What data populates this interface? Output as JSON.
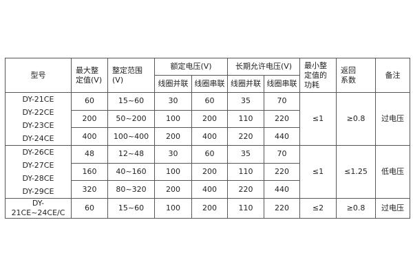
{
  "headers": {
    "model": "型号",
    "max_setting": "最大整定值(V)",
    "max_setting_l1": "最大整",
    "max_setting_l2": "定值(V)",
    "range_l1": "整定范围",
    "range_l2": "(V)",
    "rated": "额定电压(V)",
    "long_term": "长期允许电压(V)",
    "parallel": "线圈并联",
    "series": "线圈串联",
    "power_l1": "最小整",
    "power_l2": "定值的",
    "power_l3": "功耗",
    "return_l1": "返回",
    "return_l2": "系数",
    "remark": "备注"
  },
  "groups": [
    {
      "models": [
        "DY-21CE",
        "DY-22CE",
        "DY-23CE",
        "DY-24CE"
      ],
      "power": "≤1",
      "return": "≥0.8",
      "remark": "过电压",
      "rows": [
        [
          "60",
          "15~60",
          "30",
          "60",
          "35",
          "70"
        ],
        [
          "200",
          "50~200",
          "100",
          "200",
          "110",
          "220"
        ],
        [
          "400",
          "100~400",
          "200",
          "400",
          "220",
          "440"
        ]
      ]
    },
    {
      "models": [
        "DY-26CE",
        "DY-27CE",
        "DY-28CE",
        "DY-29CE"
      ],
      "power": "≤1",
      "return": "≤1.25",
      "remark": "低电压",
      "rows": [
        [
          "48",
          "12~48",
          "30",
          "60",
          "35",
          "70"
        ],
        [
          "160",
          "40~160",
          "100",
          "200",
          "110",
          "220"
        ],
        [
          "320",
          "80~320",
          "200",
          "400",
          "220",
          "440"
        ]
      ]
    },
    {
      "models": [
        "DY-21CE~24CE/C"
      ],
      "power": "≤2",
      "return": "≥0.8",
      "remark": "过电压",
      "rows": [
        [
          "60",
          "15~60",
          "100",
          "200",
          "110",
          "220"
        ]
      ]
    }
  ]
}
